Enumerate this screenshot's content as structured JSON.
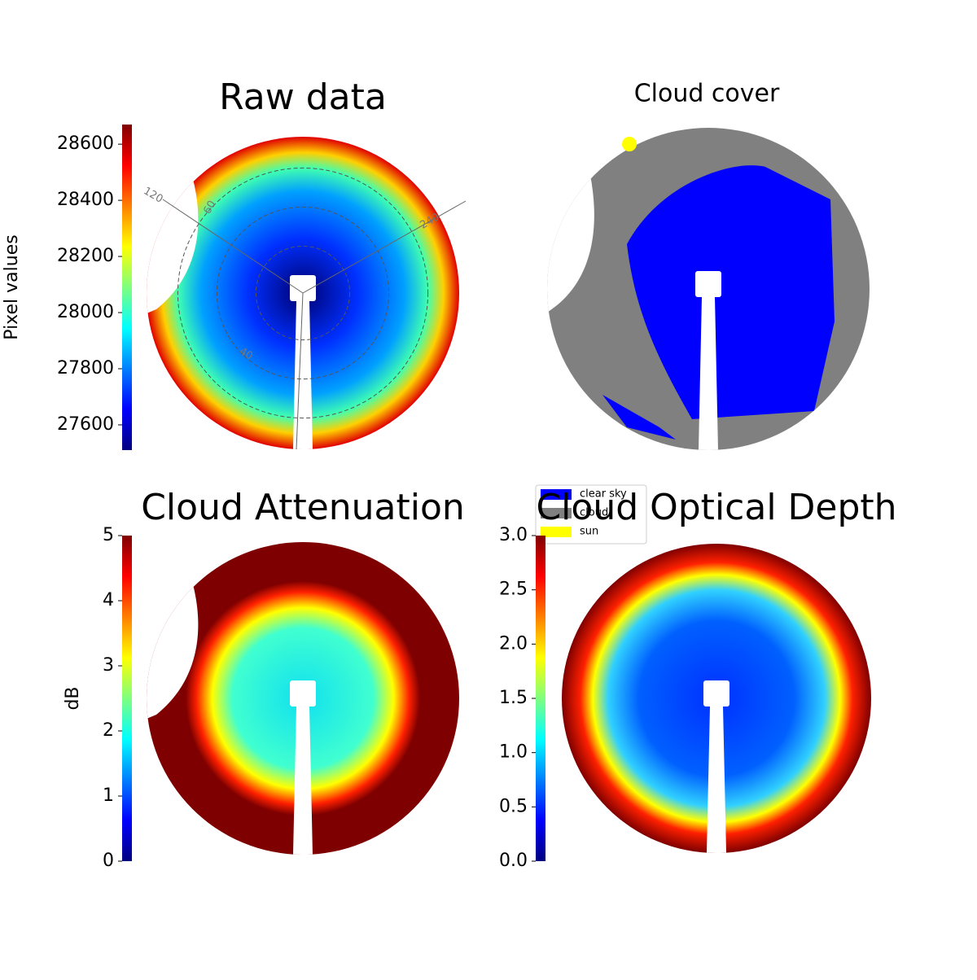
{
  "chart_data": [
    {
      "type": "image",
      "title": "Raw data",
      "colormap": "jet",
      "colorbar": {
        "label": "Pixel values",
        "lim": [
          27510,
          28670
        ],
        "ticks": [
          27600,
          27800,
          28000,
          28200,
          28400,
          28600
        ]
      },
      "annotations": [
        "120",
        "60",
        "240",
        "40"
      ]
    },
    {
      "type": "image",
      "title": "Cloud cover",
      "legend": [
        {
          "name": "clear sky",
          "color": "#0000ff"
        },
        {
          "name": "cloud",
          "color": "#808080"
        },
        {
          "name": "sun",
          "color": "#ffff00"
        }
      ]
    },
    {
      "type": "image",
      "title": "Cloud Attenuation",
      "colormap": "jet",
      "colorbar": {
        "label": "dB",
        "lim": [
          0,
          5
        ],
        "ticks": [
          0,
          1,
          2,
          3,
          4,
          5
        ]
      }
    },
    {
      "type": "image",
      "title": "Cloud Optical Depth",
      "colormap": "jet",
      "colorbar": {
        "lim": [
          0,
          3
        ],
        "ticks": [
          {
            "value": 0,
            "label": "0.0"
          },
          0.5,
          {
            "value": 1,
            "label": "1.0"
          },
          1.5,
          {
            "value": 2,
            "label": "2.0"
          },
          2.5,
          {
            "value": 3,
            "label": "3.0"
          }
        ]
      }
    }
  ]
}
